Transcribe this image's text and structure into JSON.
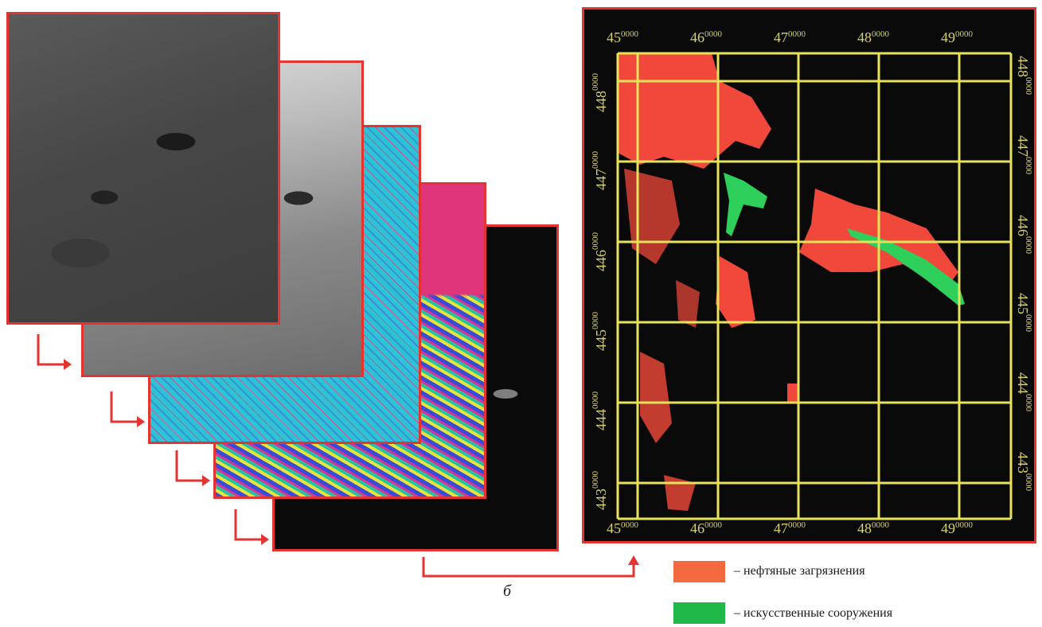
{
  "caption": "б",
  "map": {
    "top_labels": [
      {
        "major": "45",
        "minor": "0000"
      },
      {
        "major": "46",
        "minor": "0000"
      },
      {
        "major": "47",
        "minor": "0000"
      },
      {
        "major": "48",
        "minor": "0000"
      },
      {
        "major": "49",
        "minor": "0000"
      }
    ],
    "bottom_labels": [
      {
        "major": "45",
        "minor": "0000"
      },
      {
        "major": "46",
        "minor": "0000"
      },
      {
        "major": "47",
        "minor": "0000"
      },
      {
        "major": "48",
        "minor": "0000"
      },
      {
        "major": "49",
        "minor": "0000"
      }
    ],
    "left_labels": [
      {
        "major": "448",
        "minor": "0000"
      },
      {
        "major": "447",
        "minor": "0000"
      },
      {
        "major": "446",
        "minor": "0000"
      },
      {
        "major": "445",
        "minor": "0000"
      },
      {
        "major": "444",
        "minor": "0000"
      },
      {
        "major": "443",
        "minor": "0000"
      }
    ],
    "right_labels": [
      {
        "major": "448",
        "minor": "0000"
      },
      {
        "major": "447",
        "minor": "0000"
      },
      {
        "major": "446",
        "minor": "0000"
      },
      {
        "major": "445",
        "minor": "0000"
      },
      {
        "major": "444",
        "minor": "0000"
      },
      {
        "major": "443",
        "minor": "0000"
      }
    ]
  },
  "legend": [
    {
      "label": "– нефтяные загрязнения",
      "color": "#f26a3d"
    },
    {
      "label": "– искусственные сооружения",
      "color": "#1fb94a"
    }
  ],
  "colors": {
    "frame": "#e3342f",
    "grid": "#e6e25a",
    "oil": "#f0483a",
    "structures": "#2ecf5a"
  }
}
